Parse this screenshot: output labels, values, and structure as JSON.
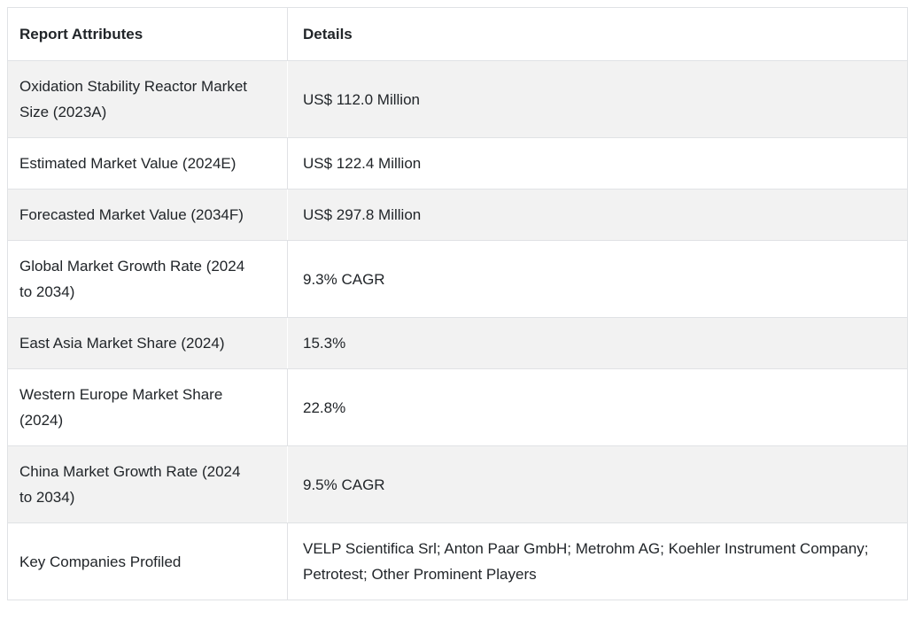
{
  "table": {
    "columns": {
      "attribute_header": "Report Attributes",
      "detail_header": "Details"
    },
    "rows": [
      {
        "attribute": "Oxidation Stability Reactor Market Size (2023A)",
        "detail": "US$ 112.0 Million"
      },
      {
        "attribute": "Estimated Market Value (2024E)",
        "detail": "US$ 122.4 Million"
      },
      {
        "attribute": "Forecasted Market Value (2034F)",
        "detail": "US$ 297.8 Million"
      },
      {
        "attribute": "Global Market Growth Rate (2024 to 2034)",
        "detail": "9.3% CAGR"
      },
      {
        "attribute": "East Asia Market Share (2024)",
        "detail": "15.3%"
      },
      {
        "attribute": "Western Europe Market Share (2024)",
        "detail": "22.8%"
      },
      {
        "attribute": "China Market Growth Rate (2024 to 2034)",
        "detail": "9.5% CAGR"
      },
      {
        "attribute": "Key Companies Profiled",
        "detail": "VELP Scientifica Srl; Anton Paar GmbH; Metrohm AG; Koehler Instrument Company; Petrotest; Other Prominent Players"
      }
    ],
    "colors": {
      "stripe_background": "#f2f2f2",
      "row_background": "#ffffff",
      "border": "#e0e2e5",
      "text": "#212529"
    }
  }
}
